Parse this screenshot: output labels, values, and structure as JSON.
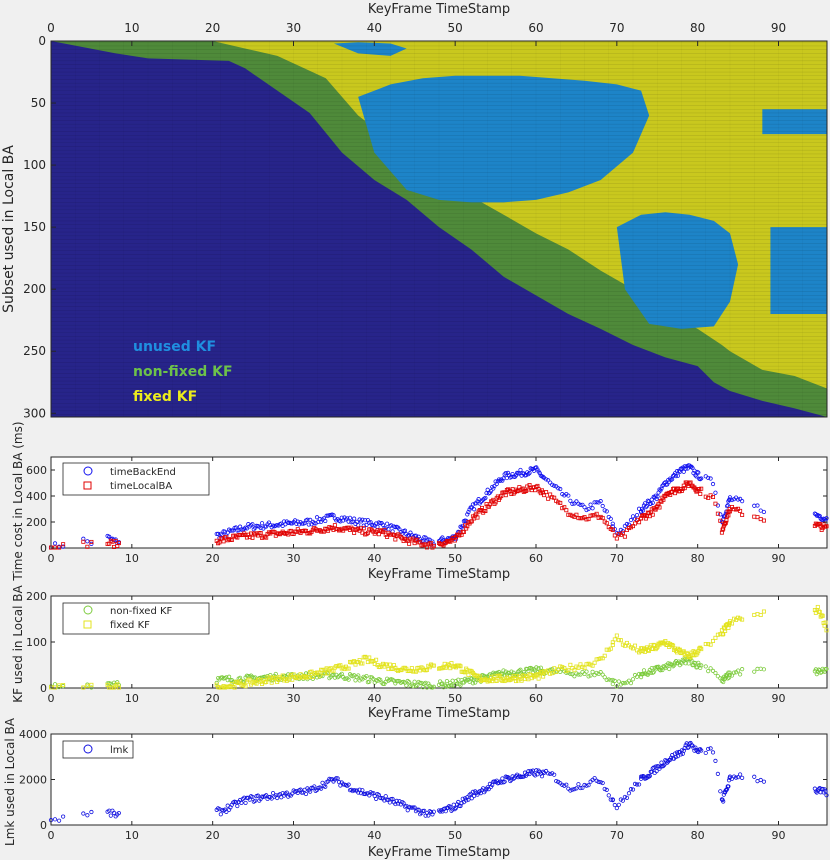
{
  "chart_data": [
    {
      "type": "heatmap",
      "xlabel": "KeyFrame TimeStamp",
      "ylabel": "Subset used in Local BA",
      "xlim": [
        0,
        96
      ],
      "ylim": [
        0,
        303
      ],
      "x_ticks": [
        "0",
        "10",
        "20",
        "30",
        "40",
        "50",
        "60",
        "70",
        "80",
        "90"
      ],
      "y_ticks": [
        "0",
        "50",
        "100",
        "150",
        "200",
        "250",
        "300"
      ],
      "colors": {
        "background": "#27248a",
        "unused": "#1d84c8",
        "nonfixed": "#4f8a3a",
        "fixed": "#c9c81e"
      },
      "legend": [
        "unused KF",
        "non-fixed KF",
        "fixed KF"
      ],
      "legend_colors": [
        "#1f8fe0",
        "#6dc24a",
        "#ecec1c"
      ],
      "diagonal_boundary": {
        "x": [
          0,
          8,
          12,
          22,
          24,
          28,
          32,
          36,
          40,
          44,
          48,
          52,
          56,
          60,
          64,
          68,
          72,
          76,
          80,
          82,
          84,
          88,
          92,
          96
        ],
        "y": [
          0,
          10,
          14,
          16,
          22,
          40,
          58,
          90,
          112,
          128,
          150,
          168,
          190,
          205,
          220,
          232,
          245,
          255,
          262,
          275,
          282,
          290,
          296,
          303
        ]
      },
      "nonfixed_end": {
        "x": [
          20,
          24,
          28,
          34,
          38,
          44,
          50,
          56,
          60,
          64,
          68,
          72,
          76,
          80,
          83,
          84,
          88,
          92,
          96
        ],
        "y": [
          0,
          6,
          12,
          30,
          60,
          90,
          118,
          140,
          155,
          168,
          185,
          200,
          218,
          232,
          245,
          250,
          265,
          270,
          280
        ]
      },
      "unused_regions": [
        {
          "x": [
            38,
            42,
            46,
            50,
            54,
            58,
            62,
            66,
            70,
            73,
            74,
            72,
            68,
            64,
            60,
            56,
            52,
            48,
            44,
            40,
            38
          ],
          "y": [
            45,
            35,
            30,
            28,
            28,
            28,
            30,
            32,
            35,
            40,
            60,
            90,
            112,
            122,
            128,
            130,
            130,
            128,
            120,
            90,
            45
          ]
        },
        {
          "x": [
            70,
            73,
            76,
            79,
            82,
            84,
            85,
            84,
            82,
            78,
            74,
            71,
            70
          ],
          "y": [
            150,
            140,
            138,
            140,
            145,
            155,
            180,
            210,
            230,
            232,
            228,
            200,
            150
          ]
        },
        {
          "x": [
            35,
            38,
            42,
            44,
            42,
            38,
            35
          ],
          "y": [
            2,
            1,
            2,
            6,
            12,
            10,
            2
          ]
        },
        {
          "x": [
            88,
            96,
            96,
            88,
            88
          ],
          "y": [
            55,
            55,
            75,
            75,
            55
          ]
        },
        {
          "x": [
            89,
            96,
            96,
            89,
            89
          ],
          "y": [
            150,
            150,
            220,
            220,
            150
          ]
        }
      ]
    },
    {
      "type": "scatter",
      "xlabel": "KeyFrame TimeStamp",
      "ylabel": "Time cost in Local BA (ms)",
      "xlim": [
        0,
        96
      ],
      "ylim": [
        0,
        700
      ],
      "x_ticks": [
        "0",
        "10",
        "20",
        "30",
        "40",
        "50",
        "60",
        "70",
        "80",
        "90"
      ],
      "y_ticks": [
        "0",
        "200",
        "400",
        "600"
      ],
      "series": [
        {
          "name": "timeBackEnd",
          "color": "#1010f0",
          "marker": "o",
          "profile": {
            "x": [
              0,
              1,
              2,
              4,
              5,
              7,
              8,
              21,
              24,
              28,
              32,
              35,
              38,
              41,
              44,
              47,
              50,
              52,
              56,
              60,
              62,
              64,
              66,
              68,
              70,
              71,
              73,
              75,
              76,
              78,
              79,
              80,
              82,
              83,
              84,
              85,
              88,
              95,
              96
            ],
            "y": [
              10,
              20,
              30,
              60,
              40,
              80,
              50,
              100,
              160,
              180,
              200,
              240,
              200,
              180,
              110,
              40,
              80,
              300,
              550,
              600,
              480,
              380,
              300,
              350,
              120,
              150,
              300,
              400,
              500,
              600,
              620,
              560,
              500,
              200,
              380,
              360,
              300,
              250,
              220
            ]
          }
        },
        {
          "name": "timeLocalBA",
          "color": "#e00000",
          "marker": "s",
          "profile": {
            "x": [
              0,
              2,
              4,
              7,
              8,
              21,
              24,
              28,
              32,
              35,
              38,
              41,
              44,
              47,
              50,
              52,
              56,
              60,
              62,
              64,
              66,
              68,
              70,
              71,
              73,
              75,
              76,
              78,
              79,
              80,
              82,
              83,
              84,
              85,
              88,
              95,
              96
            ],
            "y": [
              5,
              15,
              30,
              40,
              30,
              60,
              90,
              110,
              130,
              160,
              130,
              120,
              60,
              20,
              60,
              220,
              420,
              470,
              380,
              280,
              230,
              250,
              80,
              100,
              230,
              300,
              420,
              460,
              500,
              450,
              380,
              140,
              300,
              280,
              230,
              170,
              150
            ]
          }
        }
      ]
    },
    {
      "type": "scatter",
      "xlabel": "KeyFrame TimeStamp",
      "ylabel": "KF used in Local BA",
      "xlim": [
        0,
        96
      ],
      "ylim": [
        0,
        200
      ],
      "x_ticks": [
        "0",
        "10",
        "20",
        "30",
        "40",
        "50",
        "60",
        "70",
        "80",
        "90"
      ],
      "y_ticks": [
        "0",
        "100",
        "200"
      ],
      "series": [
        {
          "name": "non-fixed KF",
          "color": "#7ccb3c",
          "marker": "o",
          "profile": {
            "x": [
              0,
              2,
              4,
              7,
              8,
              21,
              24,
              28,
              32,
              35,
              38,
              41,
              44,
              47,
              50,
              53,
              56,
              60,
              63,
              66,
              68,
              70,
              71,
              73,
              75,
              76,
              78,
              79,
              80,
              82,
              83,
              84,
              85,
              88,
              95,
              96
            ],
            "y": [
              5,
              3,
              6,
              10,
              12,
              18,
              20,
              24,
              26,
              28,
              22,
              15,
              10,
              6,
              10,
              20,
              32,
              38,
              35,
              30,
              32,
              8,
              10,
              30,
              40,
              45,
              55,
              60,
              50,
              40,
              15,
              30,
              35,
              38,
              35,
              40
            ]
          }
        },
        {
          "name": "fixed KF",
          "color": "#e3e31e",
          "marker": "s",
          "profile": {
            "x": [
              0,
              4,
              8,
              21,
              24,
              28,
              32,
              35,
              38,
              39,
              41,
              44,
              47,
              50,
              53,
              56,
              60,
              63,
              66,
              68,
              70,
              71,
              73,
              75,
              76,
              78,
              79,
              80,
              82,
              83,
              84,
              85,
              88,
              95,
              96
            ],
            "y": [
              0,
              0,
              2,
              2,
              10,
              20,
              28,
              40,
              55,
              62,
              50,
              40,
              45,
              50,
              20,
              20,
              25,
              40,
              50,
              60,
              110,
              95,
              80,
              90,
              100,
              75,
              70,
              80,
              100,
              120,
              140,
              150,
              160,
              170,
              130
            ]
          }
        }
      ]
    },
    {
      "type": "scatter",
      "xlabel": "KeyFrame TimeStamp",
      "ylabel": "Lmk used in Local BA",
      "xlim": [
        0,
        96
      ],
      "ylim": [
        0,
        4000
      ],
      "x_ticks": [
        "0",
        "10",
        "20",
        "30",
        "40",
        "50",
        "60",
        "70",
        "80",
        "90"
      ],
      "y_ticks": [
        "0",
        "2000",
        "4000"
      ],
      "series": [
        {
          "name": "lmk",
          "color": "#1010e0",
          "marker": "o",
          "profile": {
            "x": [
              0,
              2,
              4,
              7,
              8,
              21,
              24,
              28,
              32,
              35,
              38,
              41,
              44,
              47,
              50,
              52,
              56,
              60,
              62,
              64,
              66,
              68,
              70,
              71,
              73,
              75,
              76,
              78,
              79,
              80,
              82,
              83,
              84,
              85,
              88,
              95,
              96
            ],
            "y": [
              200,
              400,
              500,
              550,
              450,
              600,
              1100,
              1300,
              1500,
              2000,
              1500,
              1200,
              800,
              450,
              800,
              1300,
              2000,
              2300,
              2200,
              1600,
              1800,
              2000,
              800,
              1200,
              2000,
              2500,
              2800,
              3200,
              3600,
              3200,
              3300,
              1000,
              2000,
              2200,
              2000,
              1500,
              1400
            ]
          }
        }
      ]
    }
  ],
  "overlay_labels": {
    "unused": "unused KF",
    "nonfixed": "non-fixed KF",
    "fixed": "fixed KF"
  },
  "legend_labels": {
    "timeBackEnd": "timeBackEnd",
    "timeLocalBA": "timeLocalBA",
    "nonfixed": "non-fixed KF",
    "fixed": "fixed KF",
    "lmk": "lmk"
  },
  "axis_labels": {
    "top_x": "KeyFrame TimeStamp",
    "heatmap_y": "Subset used in Local BA",
    "time_x": "KeyFrame TimeStamp",
    "time_y": "Time cost in Local BA (ms)",
    "kf_x": "KeyFrame TimeStamp",
    "kf_y": "KF used in Local BA",
    "lmk_x": "KeyFrame TimeStamp",
    "lmk_y": "Lmk used in Local BA"
  }
}
